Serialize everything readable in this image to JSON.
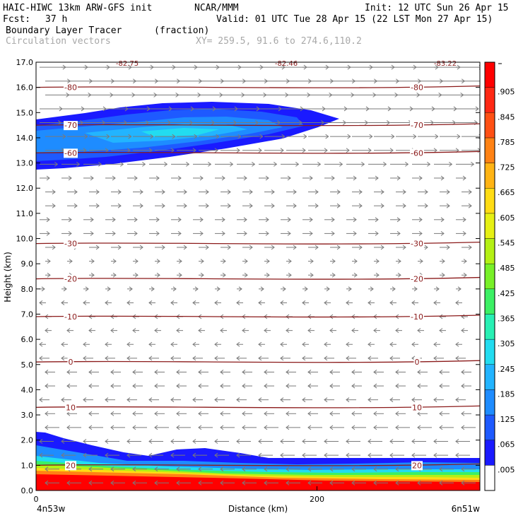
{
  "header": {
    "model": "HAIC-HIWC 13km ARW-GFS init",
    "center": "NCAR/MMM",
    "init": "Init: 12 UTC Sun 26 Apr 15",
    "fcst_label": "Fcst:",
    "fcst_value": "37 h",
    "valid": "Valid: 01 UTC Tue 28 Apr 15 (22 LST Mon 27 Apr 15)",
    "field": "Boundary Layer Tracer",
    "field_units": "(fraction)",
    "overlay": "Circulation vectors",
    "xy": "XY= 259.5, 91.6 to 274.6,110.2"
  },
  "colors": {
    "contour": "#8b1a1a",
    "vector": "#7a7a7a",
    "frame": "#000000"
  },
  "chart_data": {
    "type": "heatmap",
    "title": "Boundary Layer Tracer",
    "ylabel": "Height (km)",
    "xlabel": "Distance (km)",
    "xlim": [
      0,
      316
    ],
    "ylim": [
      0,
      17
    ],
    "y_ticks": [
      "0.0",
      "1.0",
      "2.0",
      "3.0",
      "4.0",
      "5.0",
      "6.0",
      "7.0",
      "8.0",
      "9.0",
      "10.0",
      "11.0",
      "12.0",
      "13.0",
      "14.0",
      "15.0",
      "16.0",
      "17.0"
    ],
    "x_ticks": [
      {
        "value": 0,
        "label": "0"
      },
      {
        "value": 200,
        "label": "200"
      }
    ],
    "endpoints": {
      "left": "4n53w",
      "right": "6n51w"
    },
    "colorbar": {
      "levels": [
        ".005",
        ".065",
        ".125",
        ".185",
        ".245",
        ".305",
        ".365",
        ".425",
        ".485",
        ".545",
        ".605",
        ".665",
        ".725",
        ".785",
        ".845",
        ".905"
      ],
      "colors": [
        "#ffffff",
        "#1a1aff",
        "#1e5aff",
        "#1e8cff",
        "#22b4ff",
        "#22dcf0",
        "#28f0b4",
        "#3cf064",
        "#78f028",
        "#b4f014",
        "#e6f014",
        "#ffdc14",
        "#ffb414",
        "#ff8214",
        "#ff5014",
        "#ff2814",
        "#ff0000"
      ]
    },
    "temperature_contours": [
      {
        "label": "-80",
        "y": 16.0
      },
      {
        "label": "-70",
        "y": 14.5
      },
      {
        "label": "-60",
        "y": 13.4
      },
      {
        "label": "-30",
        "y": 9.8
      },
      {
        "label": "-20",
        "y": 8.4
      },
      {
        "label": "-10",
        "y": 6.9
      },
      {
        "label": "0",
        "y": 5.1
      },
      {
        "label": "10",
        "y": 3.3
      },
      {
        "label": "20",
        "y": 1.0
      }
    ],
    "top_labels": [
      "-82.75",
      "-82.46",
      "-83.22"
    ]
  }
}
